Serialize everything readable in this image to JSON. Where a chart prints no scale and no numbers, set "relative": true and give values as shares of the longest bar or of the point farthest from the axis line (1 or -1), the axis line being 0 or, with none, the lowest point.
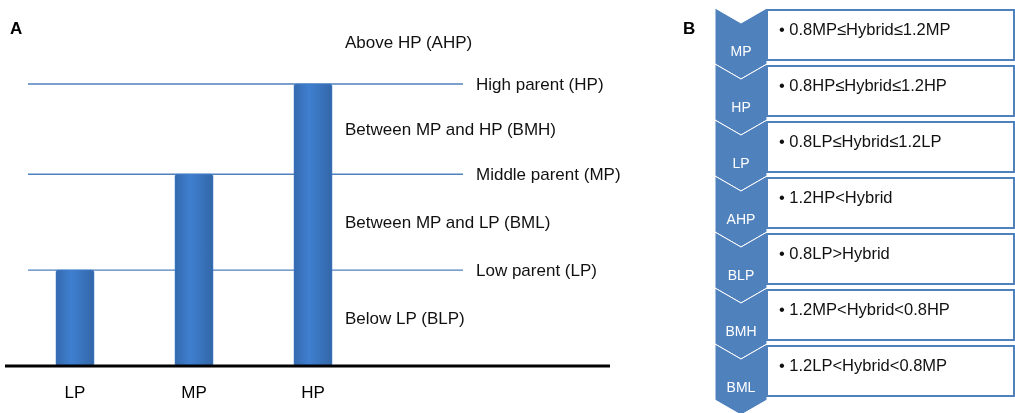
{
  "chart_data": [
    {
      "type": "bar",
      "title": "A",
      "relative": true,
      "categories": [
        "LP",
        "MP",
        "HP"
      ],
      "values": [
        0.34,
        0.68,
        1
      ],
      "color": "#3f7fd0",
      "ref_lines": [
        {
          "axis": "y",
          "value": 1,
          "label": "High parent (HP)",
          "color": "#4f81bd"
        },
        {
          "axis": "y",
          "value": 0.68,
          "label": "Middle parent (MP)",
          "color": "#4f81bd"
        },
        {
          "axis": "y",
          "value": 0.34,
          "label": "Low parent (LP)",
          "color": "#4f81bd"
        }
      ],
      "annotations": [
        "Above HP (AHP)",
        "Between MP and HP (BMH)",
        "Between MP and LP (BML)",
        "Below LP (BLP)"
      ]
    },
    {
      "type": "other",
      "title": "B",
      "color": "#4f81bd",
      "categories": [
        "MP",
        "HP",
        "LP",
        "AHP",
        "BLP",
        "BMH",
        "BML"
      ],
      "annotations": [
        "• 0.8MP≤Hybrid≤1.2MP",
        "• 0.8HP≤Hybrid≤1.2HP",
        "• 0.8LP≤Hybrid≤1.2LP",
        "• 1.2HP<Hybrid",
        "• 0.8LP>Hybrid",
        "• 1.2MP<Hybrid<0.8HP",
        "• 1.2LP<Hybrid<0.8MP"
      ]
    }
  ]
}
